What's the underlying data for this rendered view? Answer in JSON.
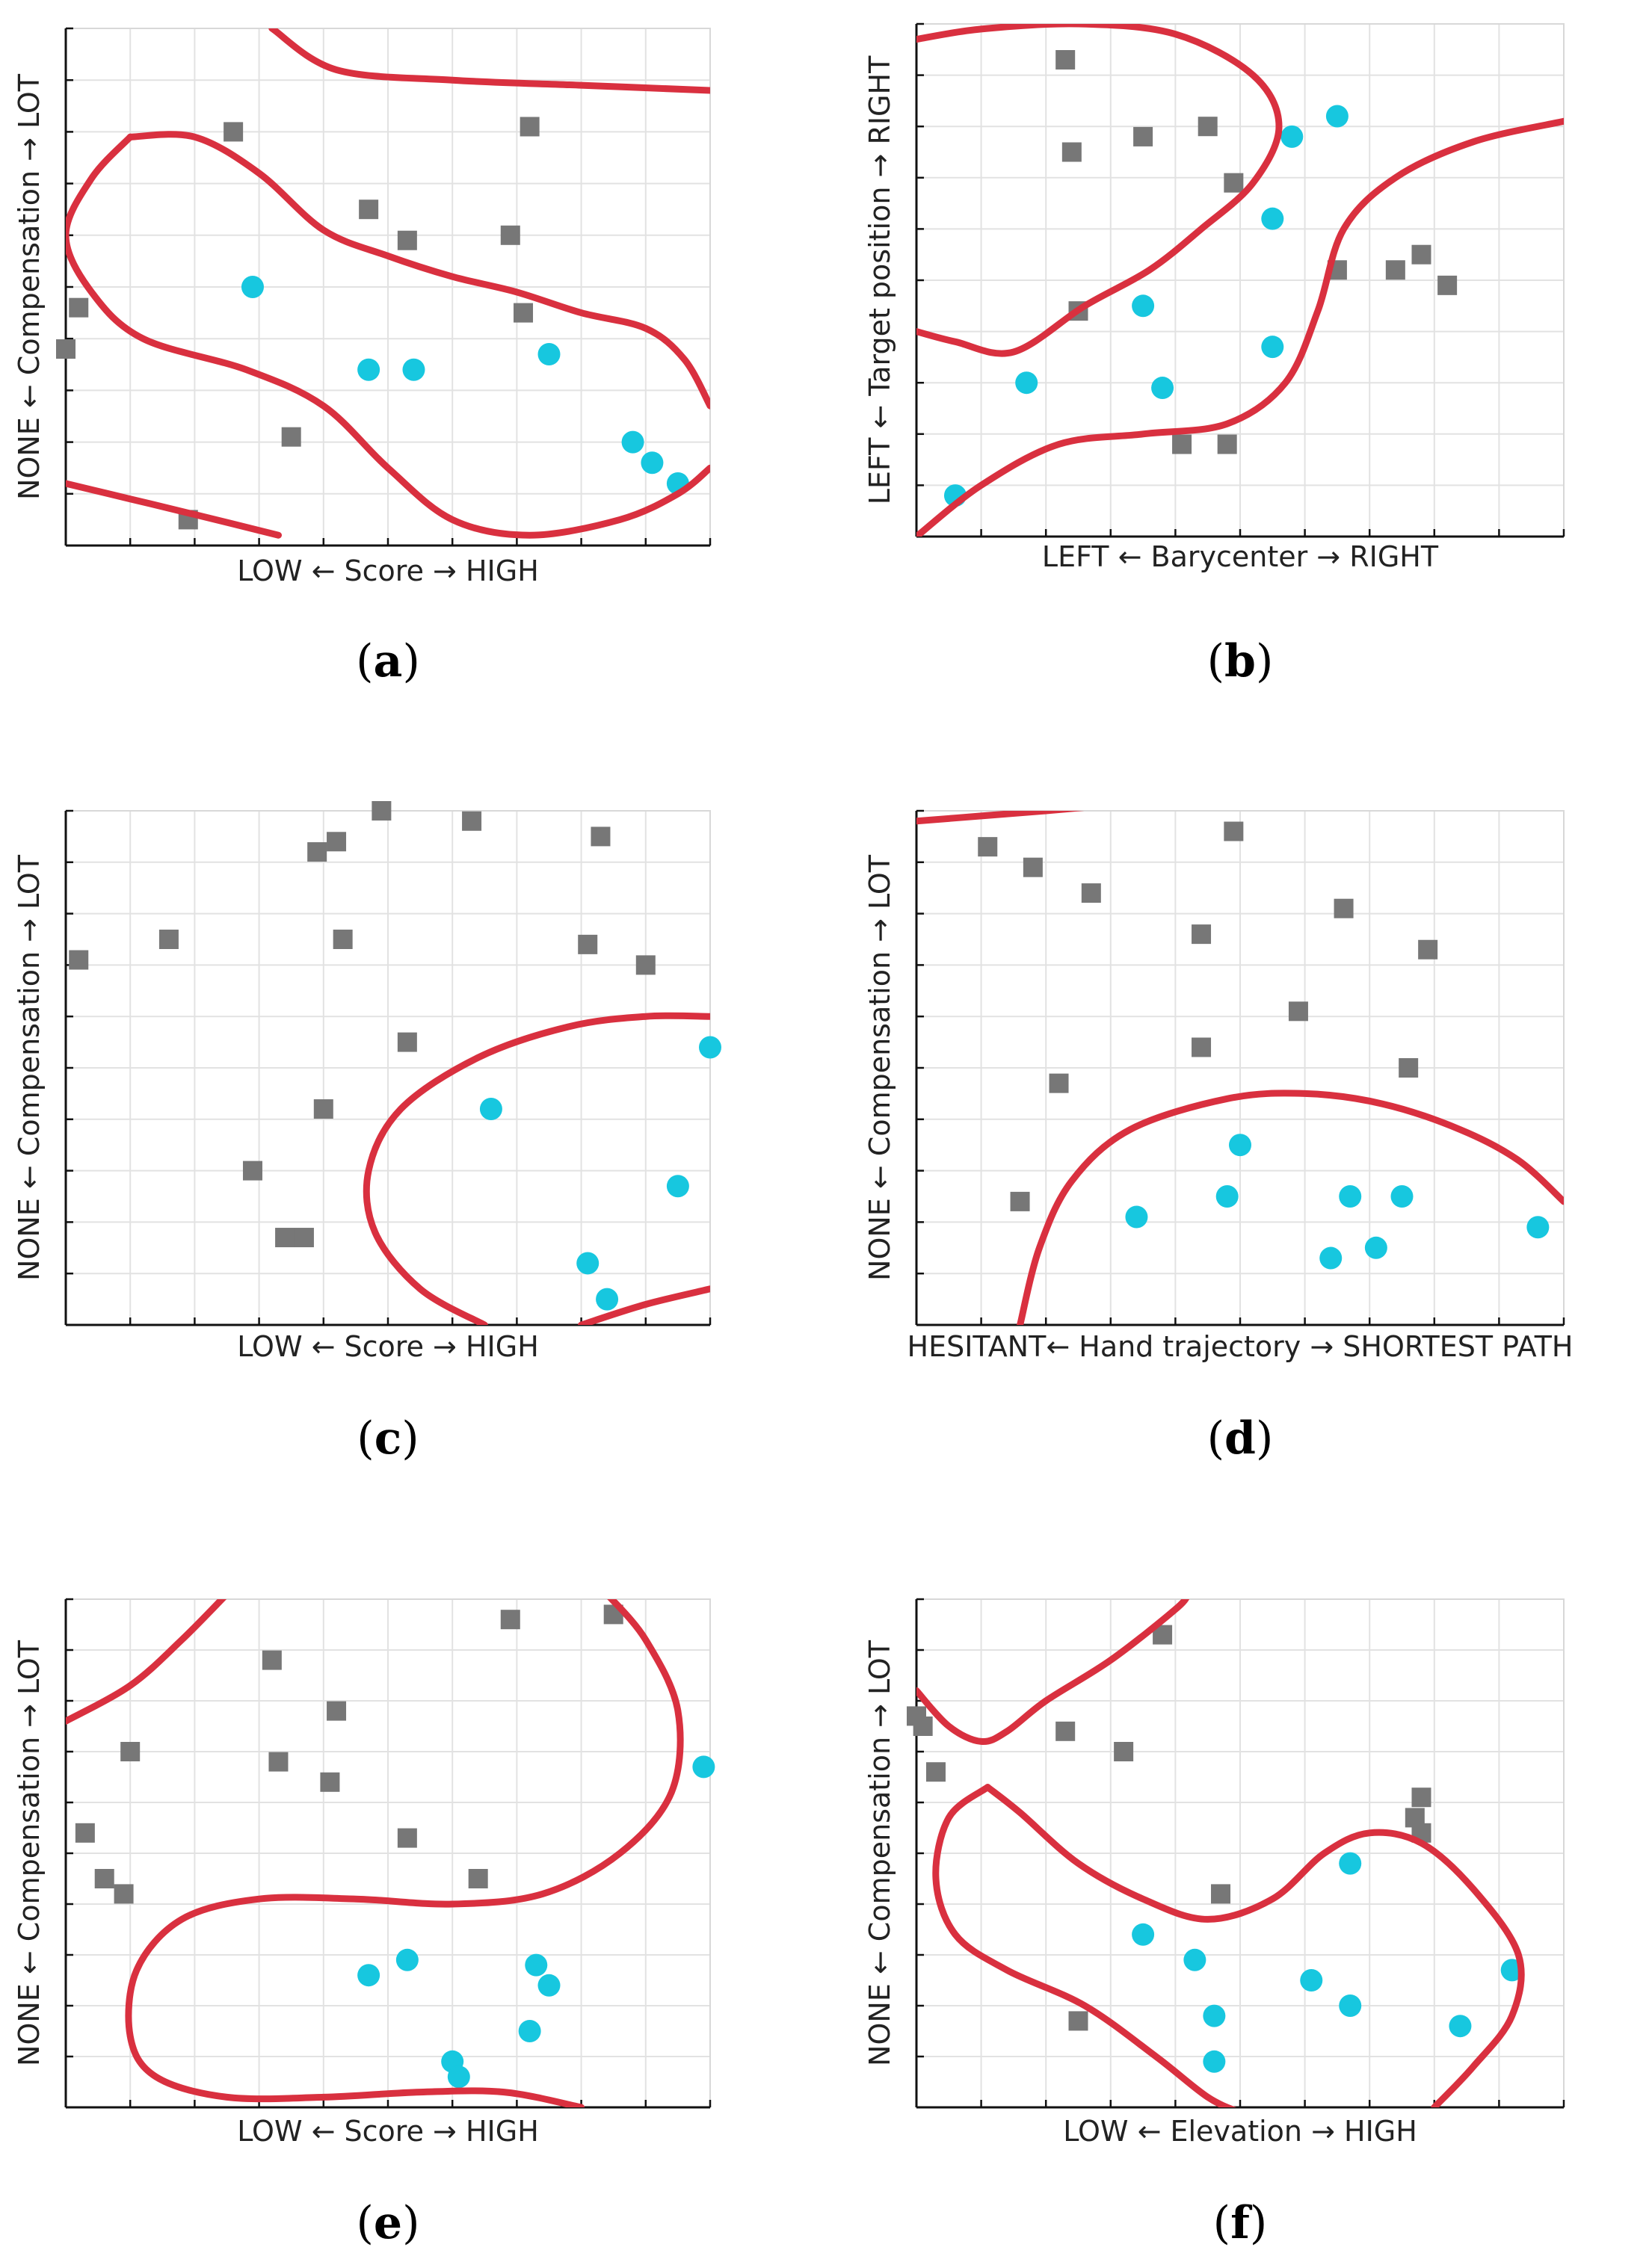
{
  "figure": {
    "colors": {
      "class_a": "#777777",
      "class_b": "#17c7df",
      "boundary": "#d9303f",
      "grid": "#e2e2e2"
    },
    "marker_names": {
      "class_a": "square-marker",
      "class_b": "circle-marker"
    }
  },
  "chart_data": [
    {
      "id": "a",
      "type": "scatter",
      "panel_label": "a",
      "xlabel": "LOW ← Score → HIGH",
      "ylabel": "NONE ← Compensation → LOT",
      "xlim": [
        0,
        1
      ],
      "ylim": [
        0,
        1
      ],
      "grid": true,
      "series": [
        {
          "marker": "square",
          "color": "#777777",
          "points": [
            [
              0.02,
              0.46
            ],
            [
              0.0,
              0.38
            ],
            [
              0.26,
              0.8
            ],
            [
              0.47,
              0.65
            ],
            [
              0.53,
              0.59
            ],
            [
              0.69,
              0.6
            ],
            [
              0.72,
              0.81
            ],
            [
              0.71,
              0.45
            ],
            [
              0.35,
              0.21
            ],
            [
              0.19,
              0.05
            ]
          ]
        },
        {
          "marker": "circle",
          "color": "#17c7df",
          "points": [
            [
              0.29,
              0.5
            ],
            [
              0.47,
              0.34
            ],
            [
              0.54,
              0.34
            ],
            [
              0.75,
              0.37
            ],
            [
              0.88,
              0.2
            ],
            [
              0.91,
              0.16
            ],
            [
              0.95,
              0.12
            ]
          ]
        }
      ],
      "boundaries": [
        [
          [
            0.32,
            1.0
          ],
          [
            0.42,
            0.92
          ],
          [
            0.6,
            0.9
          ],
          [
            0.8,
            0.89
          ],
          [
            1.0,
            0.88
          ]
        ],
        [
          [
            0.1,
            0.79
          ],
          [
            0.2,
            0.79
          ],
          [
            0.3,
            0.72
          ],
          [
            0.4,
            0.61
          ],
          [
            0.5,
            0.56
          ],
          [
            0.6,
            0.52
          ],
          [
            0.7,
            0.49
          ],
          [
            0.8,
            0.45
          ],
          [
            0.9,
            0.42
          ],
          [
            0.96,
            0.36
          ],
          [
            1.0,
            0.27
          ]
        ],
        [
          [
            0.1,
            0.79
          ],
          [
            0.04,
            0.71
          ],
          [
            0.0,
            0.6
          ],
          [
            0.04,
            0.49
          ],
          [
            0.12,
            0.4
          ],
          [
            0.28,
            0.34
          ],
          [
            0.4,
            0.27
          ],
          [
            0.5,
            0.15
          ],
          [
            0.6,
            0.05
          ],
          [
            0.72,
            0.02
          ],
          [
            0.86,
            0.05
          ],
          [
            0.95,
            0.1
          ],
          [
            1.0,
            0.15
          ]
        ],
        [
          [
            0.0,
            0.12
          ],
          [
            0.1,
            0.09
          ],
          [
            0.2,
            0.06
          ],
          [
            0.33,
            0.02
          ]
        ]
      ]
    },
    {
      "id": "b",
      "type": "scatter",
      "panel_label": "b",
      "xlabel": "LEFT ← Barycenter → RIGHT",
      "ylabel": "LEFT ← Target position → RIGHT",
      "xlim": [
        0,
        1
      ],
      "ylim": [
        0,
        1
      ],
      "grid": true,
      "series": [
        {
          "marker": "square",
          "color": "#777777",
          "points": [
            [
              0.23,
              0.93
            ],
            [
              0.24,
              0.75
            ],
            [
              0.35,
              0.78
            ],
            [
              0.45,
              0.8
            ],
            [
              0.49,
              0.69
            ],
            [
              0.25,
              0.44
            ],
            [
              0.65,
              0.52
            ],
            [
              0.74,
              0.52
            ],
            [
              0.78,
              0.55
            ],
            [
              0.82,
              0.49
            ],
            [
              0.41,
              0.18
            ],
            [
              0.48,
              0.18
            ]
          ]
        },
        {
          "marker": "circle",
          "color": "#17c7df",
          "points": [
            [
              0.58,
              0.78
            ],
            [
              0.65,
              0.82
            ],
            [
              0.55,
              0.62
            ],
            [
              0.35,
              0.45
            ],
            [
              0.55,
              0.37
            ],
            [
              0.17,
              0.3
            ],
            [
              0.38,
              0.29
            ],
            [
              0.06,
              0.08
            ]
          ]
        }
      ],
      "boundaries": [
        [
          [
            0.0,
            0.97
          ],
          [
            0.1,
            0.99
          ],
          [
            0.25,
            1.0
          ],
          [
            0.4,
            0.98
          ],
          [
            0.52,
            0.9
          ],
          [
            0.56,
            0.8
          ],
          [
            0.52,
            0.69
          ],
          [
            0.44,
            0.6
          ],
          [
            0.36,
            0.52
          ],
          [
            0.26,
            0.45
          ],
          [
            0.15,
            0.36
          ],
          [
            0.06,
            0.38
          ],
          [
            0.0,
            0.4
          ]
        ],
        [
          [
            0.0,
            0.0
          ],
          [
            0.1,
            0.1
          ],
          [
            0.22,
            0.18
          ],
          [
            0.35,
            0.2
          ],
          [
            0.48,
            0.22
          ],
          [
            0.57,
            0.3
          ],
          [
            0.62,
            0.44
          ],
          [
            0.66,
            0.6
          ],
          [
            0.74,
            0.7
          ],
          [
            0.86,
            0.77
          ],
          [
            1.0,
            0.81
          ]
        ]
      ]
    },
    {
      "id": "c",
      "type": "scatter",
      "panel_label": "c",
      "xlabel": "LOW ← Score → HIGH",
      "ylabel": "NONE ← Compensation → LOT",
      "xlim": [
        0,
        1
      ],
      "ylim": [
        0,
        1
      ],
      "grid": true,
      "series": [
        {
          "marker": "square",
          "color": "#777777",
          "points": [
            [
              0.02,
              0.71
            ],
            [
              0.16,
              0.75
            ],
            [
              0.39,
              0.92
            ],
            [
              0.42,
              0.94
            ],
            [
              0.49,
              1.0
            ],
            [
              0.63,
              0.98
            ],
            [
              0.83,
              0.95
            ],
            [
              0.43,
              0.75
            ],
            [
              0.81,
              0.74
            ],
            [
              0.9,
              0.7
            ],
            [
              0.53,
              0.55
            ],
            [
              0.4,
              0.42
            ],
            [
              0.29,
              0.3
            ],
            [
              0.34,
              0.17
            ],
            [
              0.37,
              0.17
            ]
          ]
        },
        {
          "marker": "circle",
          "color": "#17c7df",
          "points": [
            [
              1.0,
              0.54
            ],
            [
              0.66,
              0.42
            ],
            [
              0.95,
              0.27
            ],
            [
              0.81,
              0.12
            ],
            [
              0.84,
              0.05
            ]
          ]
        }
      ],
      "boundaries": [
        [
          [
            1.0,
            0.6
          ],
          [
            0.9,
            0.6
          ],
          [
            0.78,
            0.58
          ],
          [
            0.64,
            0.52
          ],
          [
            0.52,
            0.42
          ],
          [
            0.47,
            0.3
          ],
          [
            0.48,
            0.18
          ],
          [
            0.55,
            0.07
          ],
          [
            0.65,
            0.0
          ]
        ],
        [
          [
            0.8,
            0.0
          ],
          [
            0.9,
            0.04
          ],
          [
            1.0,
            0.07
          ]
        ]
      ]
    },
    {
      "id": "d",
      "type": "scatter",
      "panel_label": "d",
      "xlabel": "HESITANT← Hand trajectory → SHORTEST PATH",
      "ylabel": "NONE ← Compensation → LOT",
      "xlim": [
        0,
        1
      ],
      "ylim": [
        0,
        1
      ],
      "grid": true,
      "series": [
        {
          "marker": "square",
          "color": "#777777",
          "points": [
            [
              0.11,
              0.93
            ],
            [
              0.18,
              0.89
            ],
            [
              0.27,
              0.84
            ],
            [
              0.49,
              0.96
            ],
            [
              0.66,
              0.81
            ],
            [
              0.44,
              0.76
            ],
            [
              0.59,
              0.61
            ],
            [
              0.79,
              0.73
            ],
            [
              0.44,
              0.54
            ],
            [
              0.76,
              0.5
            ],
            [
              0.22,
              0.47
            ],
            [
              0.16,
              0.24
            ]
          ]
        },
        {
          "marker": "circle",
          "color": "#17c7df",
          "points": [
            [
              0.5,
              0.35
            ],
            [
              0.48,
              0.25
            ],
            [
              0.34,
              0.21
            ],
            [
              0.67,
              0.25
            ],
            [
              0.75,
              0.25
            ],
            [
              0.64,
              0.13
            ],
            [
              0.71,
              0.15
            ],
            [
              0.96,
              0.19
            ]
          ]
        }
      ],
      "boundaries": [
        [
          [
            0.0,
            0.98
          ],
          [
            0.1,
            0.99
          ],
          [
            0.2,
            1.0
          ],
          [
            0.29,
            1.01
          ]
        ],
        [
          [
            0.16,
            0.0
          ],
          [
            0.19,
            0.15
          ],
          [
            0.24,
            0.28
          ],
          [
            0.33,
            0.38
          ],
          [
            0.48,
            0.44
          ],
          [
            0.6,
            0.45
          ],
          [
            0.72,
            0.43
          ],
          [
            0.84,
            0.38
          ],
          [
            0.93,
            0.32
          ],
          [
            1.0,
            0.24
          ]
        ]
      ]
    },
    {
      "id": "e",
      "type": "scatter",
      "panel_label": "e",
      "xlabel": "LOW ← Score → HIGH",
      "ylabel": "NONE ← Compensation → LOT",
      "xlim": [
        0,
        1
      ],
      "ylim": [
        0,
        1
      ],
      "grid": true,
      "series": [
        {
          "marker": "square",
          "color": "#777777",
          "points": [
            [
              0.69,
              0.96
            ],
            [
              0.85,
              0.97
            ],
            [
              0.32,
              0.88
            ],
            [
              0.42,
              0.78
            ],
            [
              0.1,
              0.7
            ],
            [
              0.33,
              0.68
            ],
            [
              0.41,
              0.64
            ],
            [
              0.03,
              0.54
            ],
            [
              0.06,
              0.45
            ],
            [
              0.09,
              0.42
            ],
            [
              0.53,
              0.53
            ],
            [
              0.64,
              0.45
            ]
          ]
        },
        {
          "marker": "circle",
          "color": "#17c7df",
          "points": [
            [
              0.99,
              0.67
            ],
            [
              0.47,
              0.26
            ],
            [
              0.53,
              0.29
            ],
            [
              0.73,
              0.28
            ],
            [
              0.75,
              0.24
            ],
            [
              0.72,
              0.15
            ],
            [
              0.6,
              0.09
            ],
            [
              0.61,
              0.06
            ]
          ]
        }
      ],
      "boundaries": [
        [
          [
            0.0,
            0.76
          ],
          [
            0.1,
            0.83
          ],
          [
            0.18,
            0.92
          ],
          [
            0.25,
            1.01
          ]
        ],
        [
          [
            0.84,
            1.01
          ],
          [
            0.9,
            0.92
          ],
          [
            0.95,
            0.78
          ],
          [
            0.94,
            0.62
          ],
          [
            0.86,
            0.5
          ],
          [
            0.74,
            0.42
          ],
          [
            0.6,
            0.4
          ],
          [
            0.45,
            0.41
          ],
          [
            0.3,
            0.41
          ],
          [
            0.18,
            0.37
          ],
          [
            0.11,
            0.27
          ],
          [
            0.1,
            0.14
          ],
          [
            0.14,
            0.06
          ],
          [
            0.25,
            0.02
          ],
          [
            0.4,
            0.02
          ],
          [
            0.55,
            0.03
          ],
          [
            0.68,
            0.03
          ],
          [
            0.8,
            0.0
          ]
        ]
      ]
    },
    {
      "id": "f",
      "type": "scatter",
      "panel_label": "f",
      "xlabel": "LOW ← Elevation → HIGH",
      "ylabel": "NONE ← Compensation → LOT",
      "xlim": [
        0,
        1
      ],
      "ylim": [
        0,
        1
      ],
      "grid": true,
      "series": [
        {
          "marker": "square",
          "color": "#777777",
          "points": [
            [
              0.38,
              0.93
            ],
            [
              0.0,
              0.77
            ],
            [
              0.01,
              0.75
            ],
            [
              0.23,
              0.74
            ],
            [
              0.32,
              0.7
            ],
            [
              0.03,
              0.66
            ],
            [
              0.78,
              0.61
            ],
            [
              0.77,
              0.57
            ],
            [
              0.78,
              0.54
            ],
            [
              0.47,
              0.42
            ],
            [
              0.25,
              0.17
            ]
          ]
        },
        {
          "marker": "circle",
          "color": "#17c7df",
          "points": [
            [
              0.67,
              0.48
            ],
            [
              0.35,
              0.34
            ],
            [
              0.43,
              0.29
            ],
            [
              0.46,
              0.18
            ],
            [
              0.61,
              0.25
            ],
            [
              0.67,
              0.2
            ],
            [
              0.84,
              0.16
            ],
            [
              0.92,
              0.27
            ],
            [
              0.46,
              0.09
            ]
          ]
        }
      ],
      "boundaries": [
        [
          [
            0.0,
            0.82
          ],
          [
            0.05,
            0.75
          ],
          [
            0.1,
            0.72
          ],
          [
            0.14,
            0.74
          ],
          [
            0.2,
            0.8
          ],
          [
            0.3,
            0.88
          ],
          [
            0.4,
            0.98
          ],
          [
            0.42,
            1.01
          ]
        ],
        [
          [
            0.11,
            0.63
          ],
          [
            0.05,
            0.57
          ],
          [
            0.03,
            0.45
          ],
          [
            0.06,
            0.34
          ],
          [
            0.14,
            0.27
          ],
          [
            0.26,
            0.2
          ],
          [
            0.37,
            0.1
          ],
          [
            0.45,
            0.02
          ],
          [
            0.5,
            -0.01
          ]
        ],
        [
          [
            0.11,
            0.63
          ],
          [
            0.16,
            0.58
          ],
          [
            0.25,
            0.48
          ],
          [
            0.35,
            0.41
          ],
          [
            0.45,
            0.37
          ],
          [
            0.55,
            0.41
          ],
          [
            0.63,
            0.5
          ],
          [
            0.7,
            0.54
          ],
          [
            0.78,
            0.52
          ],
          [
            0.86,
            0.43
          ],
          [
            0.93,
            0.3
          ],
          [
            0.92,
            0.18
          ],
          [
            0.86,
            0.08
          ],
          [
            0.8,
            0.0
          ]
        ]
      ]
    }
  ]
}
